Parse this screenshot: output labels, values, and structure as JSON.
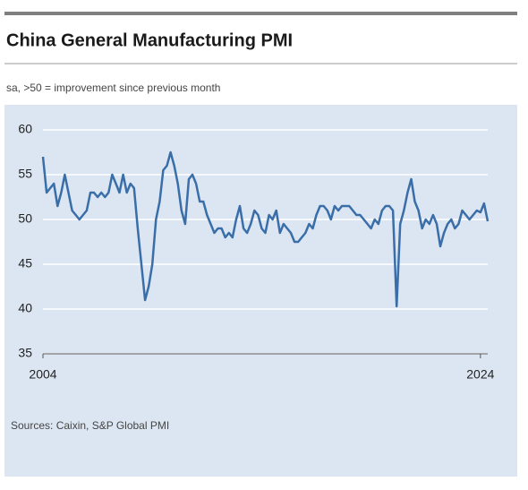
{
  "chart_data": {
    "type": "line",
    "title": "China General Manufacturing PMI",
    "subtitle": "sa, >50 = improvement since previous month",
    "source": "Sources: Caixin, S&P Global PMI",
    "categories": [
      "2004",
      null,
      null,
      null,
      null,
      null,
      null,
      null,
      null,
      null,
      null,
      null,
      null,
      null,
      null,
      null,
      null,
      null,
      null,
      null,
      null,
      null,
      null,
      null,
      null,
      null,
      null,
      null,
      null,
      null,
      null,
      null,
      null,
      null,
      null,
      null,
      null,
      null,
      null,
      null,
      null,
      null,
      null,
      null,
      null,
      null,
      null,
      null,
      null,
      null,
      null,
      null,
      null,
      null,
      null,
      null,
      null,
      null,
      null,
      null,
      null,
      null,
      null,
      null,
      null,
      null,
      null,
      null,
      null,
      null,
      null,
      null,
      null,
      null,
      null,
      null,
      null,
      null,
      null,
      null,
      null,
      null,
      null,
      null,
      null,
      null,
      null,
      null,
      null,
      null,
      null,
      null,
      null,
      null,
      null,
      null,
      null,
      null,
      null,
      null,
      null,
      null,
      null,
      null,
      null,
      null,
      null,
      null,
      null,
      null,
      null,
      null,
      null,
      null,
      null,
      null,
      null,
      null,
      null,
      null,
      "2024",
      null,
      null
    ],
    "values": [
      57,
      53,
      53.5,
      54,
      51.5,
      53,
      55,
      53,
      51,
      50.5,
      50,
      50.5,
      51,
      53,
      53,
      52.5,
      53,
      52.5,
      53,
      55,
      54,
      53,
      55,
      53,
      54,
      53.5,
      49,
      45,
      41,
      42.5,
      45,
      50,
      52,
      55.5,
      56,
      57.5,
      56,
      54,
      51,
      49.5,
      54.5,
      55,
      54,
      52,
      52,
      50.5,
      49.5,
      48.5,
      49,
      49,
      48,
      48.5,
      48,
      50,
      51.5,
      49,
      48.5,
      49.5,
      51,
      50.5,
      49,
      48.5,
      50.5,
      50,
      51,
      48.5,
      49.5,
      49,
      48.5,
      47.5,
      47.5,
      48,
      48.5,
      49.5,
      49,
      50.5,
      51.5,
      51.5,
      51,
      50,
      51.5,
      51,
      51.5,
      51.5,
      51.5,
      51,
      50.5,
      50.5,
      50,
      49.5,
      49,
      50,
      49.5,
      51,
      51.5,
      51.5,
      51,
      40.3,
      49.5,
      51,
      53,
      54.5,
      52,
      51,
      49,
      50,
      49.5,
      50.5,
      49.5,
      47,
      48.5,
      49.5,
      50,
      49,
      49.5,
      51,
      50.5,
      50,
      50.5,
      51,
      50.8,
      51.8,
      49.8
    ],
    "color": "#3a6ea8",
    "ylim": [
      35,
      60
    ],
    "yticks": [
      35,
      40,
      45,
      50,
      55,
      60
    ],
    "grid": true
  }
}
